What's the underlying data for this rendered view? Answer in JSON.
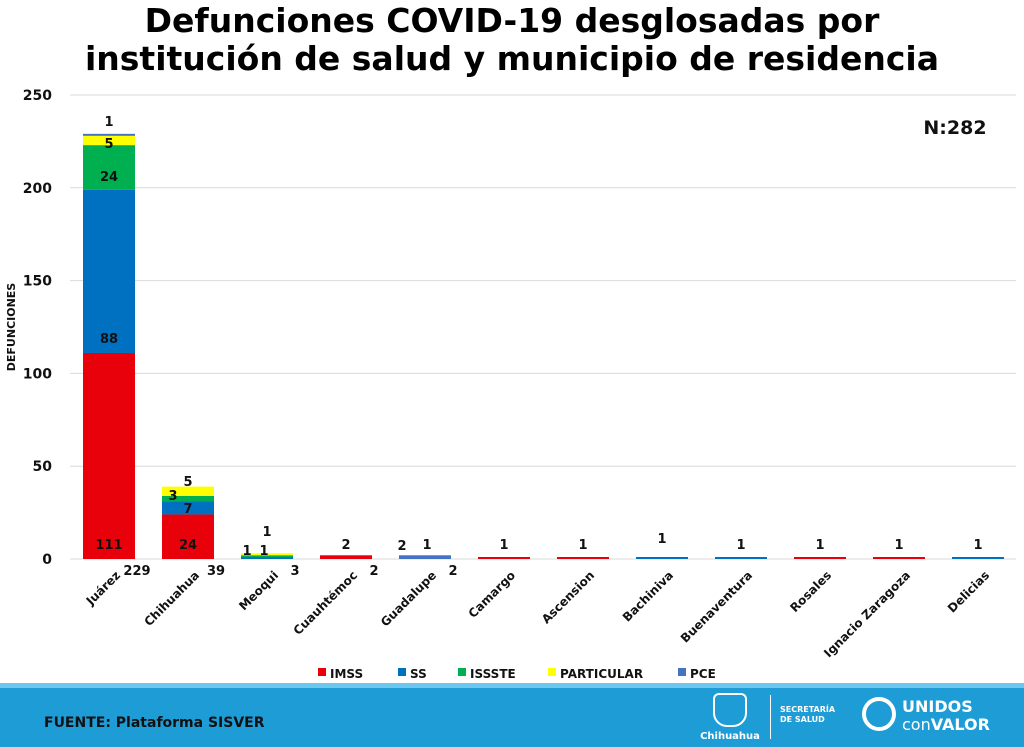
{
  "title_line1": "Defunciones COVID-19 desglosadas por",
  "title_line2": "institución de salud y municipio de residencia",
  "footer": {
    "source": "FUENTE: Plataforma SISVER",
    "logo1_text": "Chihuahua",
    "logo2_line1": "SECRETARÍA",
    "logo2_line2": "DE SALUD",
    "logo3_line1": "UNIDOS",
    "logo3_line2a": "con",
    "logo3_line2b": "VALOR"
  },
  "chart_data": {
    "type": "bar",
    "stacked": true,
    "ylabel": "DEFUNCIONES",
    "xlabel": "",
    "ylim": [
      0,
      250
    ],
    "yticks": [
      0,
      50,
      100,
      150,
      200,
      250
    ],
    "grid": true,
    "legend_position": "bottom",
    "annotation": "N:282",
    "categories": [
      "Juárez",
      "Chihuahua",
      "Meoqui",
      "Cuauhtémoc",
      "Guadalupe",
      "Camargo",
      "Ascension",
      "Bachiniva",
      "Buenaventura",
      "Rosales",
      "Ignacio Zaragoza",
      "Delicias"
    ],
    "totals": [
      229,
      39,
      3,
      2,
      2,
      1,
      1,
      1,
      1,
      1,
      1,
      1
    ],
    "series": [
      {
        "name": "IMSS",
        "color": "#e8000b",
        "values": [
          111,
          24,
          0,
          2,
          0,
          1,
          1,
          0,
          0,
          1,
          1,
          0
        ]
      },
      {
        "name": "SS",
        "color": "#0070c0",
        "values": [
          88,
          7,
          1,
          0,
          0,
          0,
          0,
          1,
          1,
          0,
          0,
          1
        ]
      },
      {
        "name": "ISSSTE",
        "color": "#00b050",
        "values": [
          24,
          3,
          1,
          0,
          0,
          0,
          0,
          0,
          0,
          0,
          0,
          0
        ]
      },
      {
        "name": "PARTICULAR",
        "color": "#ffff00",
        "values": [
          5,
          5,
          1,
          0,
          0,
          0,
          0,
          0,
          0,
          0,
          0,
          0
        ]
      },
      {
        "name": "PCE",
        "color": "#4472c4",
        "values": [
          1,
          0,
          0,
          0,
          2,
          0,
          0,
          0,
          0,
          0,
          0,
          0
        ]
      }
    ]
  }
}
